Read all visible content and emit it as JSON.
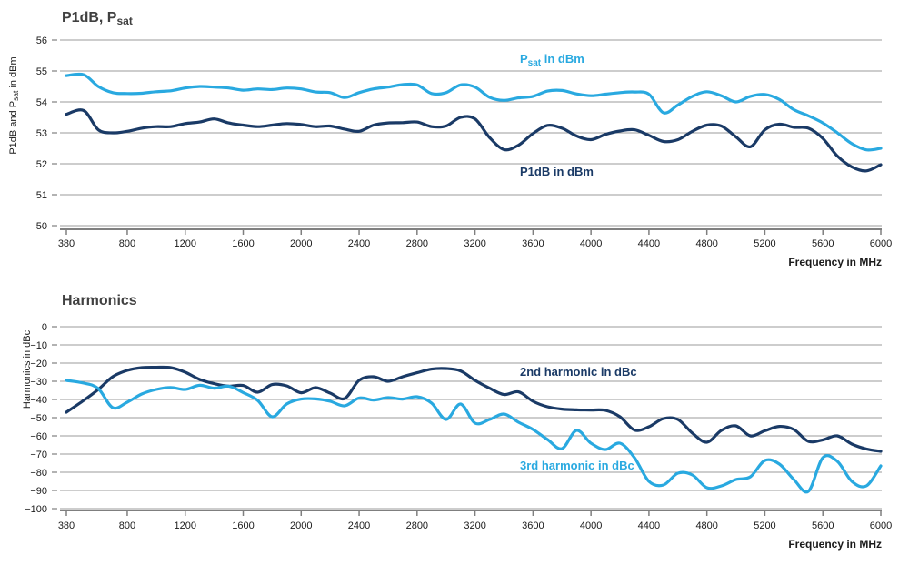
{
  "palette": {
    "light_blue": "#29A9E0",
    "dark_blue": "#1A3A66",
    "grid": "#9B9B9B",
    "axis": "#7F7F7F",
    "title_text": "#404040",
    "tick_text": "#1A1A1A",
    "background": "#FFFFFF"
  },
  "chart_data": [
    {
      "type": "line",
      "title": "P1dB, Psat",
      "title_parts": {
        "pre": "P1dB, P",
        "sub": "sat"
      },
      "ylabel": "P1dB and Psat in dBm",
      "ylabel_parts": {
        "pre": "P1dB and P",
        "sub": "sat",
        "post": " in dBm"
      },
      "xlabel": "Frequency in MHz",
      "ylim": [
        50,
        56
      ],
      "grid": true,
      "legend_position": "inline-labels",
      "y_ticks": [
        56,
        55,
        54,
        53,
        52,
        51,
        50
      ],
      "x_ticks": [
        380,
        800,
        1200,
        1600,
        2000,
        2400,
        2800,
        3200,
        3600,
        4000,
        4400,
        4800,
        5200,
        5600,
        6000
      ],
      "x": [
        380,
        500,
        600,
        700,
        800,
        900,
        1000,
        1100,
        1200,
        1300,
        1400,
        1500,
        1600,
        1700,
        1800,
        1900,
        2000,
        2100,
        2200,
        2300,
        2400,
        2500,
        2600,
        2700,
        2800,
        2900,
        3000,
        3100,
        3200,
        3300,
        3400,
        3500,
        3600,
        3700,
        3800,
        3900,
        4000,
        4100,
        4200,
        4300,
        4400,
        4500,
        4600,
        4700,
        4800,
        4900,
        5000,
        5100,
        5200,
        5300,
        5400,
        5500,
        5600,
        5700,
        5800,
        5900,
        6000
      ],
      "series": [
        {
          "name": "Psat in dBm",
          "legend": {
            "pre": "P",
            "sub": "sat",
            "post": " in dBm"
          },
          "color": "#29A9E0",
          "values": [
            54.85,
            54.88,
            54.5,
            54.3,
            54.27,
            54.28,
            54.33,
            54.36,
            54.45,
            54.5,
            54.48,
            54.45,
            54.38,
            54.42,
            54.4,
            54.45,
            54.42,
            54.32,
            54.3,
            54.14,
            54.3,
            54.42,
            54.48,
            54.56,
            54.55,
            54.27,
            54.3,
            54.55,
            54.48,
            54.15,
            54.05,
            54.13,
            54.18,
            54.35,
            54.37,
            54.26,
            54.2,
            54.25,
            54.3,
            54.32,
            54.25,
            53.65,
            53.9,
            54.18,
            54.33,
            54.2,
            54.0,
            54.18,
            54.24,
            54.08,
            53.75,
            53.55,
            53.32,
            53.0,
            52.65,
            52.45,
            52.5
          ]
        },
        {
          "name": "P1dB in dBm",
          "legend": {
            "pre": "P1dB in dBm",
            "sub": "",
            "post": ""
          },
          "color": "#1A3A66",
          "values": [
            53.6,
            53.72,
            53.1,
            53.0,
            53.05,
            53.15,
            53.2,
            53.2,
            53.3,
            53.35,
            53.45,
            53.32,
            53.25,
            53.2,
            53.25,
            53.3,
            53.27,
            53.2,
            53.22,
            53.12,
            53.05,
            53.25,
            53.32,
            53.33,
            53.35,
            53.2,
            53.22,
            53.5,
            53.45,
            52.85,
            52.46,
            52.6,
            52.98,
            53.24,
            53.15,
            52.9,
            52.78,
            52.95,
            53.06,
            53.1,
            52.92,
            52.72,
            52.78,
            53.05,
            53.25,
            53.22,
            52.87,
            52.55,
            53.1,
            53.28,
            53.18,
            53.15,
            52.82,
            52.25,
            51.9,
            51.77,
            51.97
          ]
        }
      ]
    },
    {
      "type": "line",
      "title": "Harmonics",
      "title_parts": {
        "pre": "Harmonics",
        "sub": ""
      },
      "ylabel": "Harmonics in dBc",
      "ylabel_parts": {
        "pre": "Harmonics in dBc",
        "sub": "",
        "post": ""
      },
      "xlabel": "Frequency in MHz",
      "ylim": [
        -100,
        0
      ],
      "grid": true,
      "legend_position": "inline-labels",
      "y_ticks": [
        0,
        -10,
        -20,
        -30,
        -40,
        -50,
        -60,
        -70,
        -80,
        -90,
        -100
      ],
      "x_ticks": [
        380,
        800,
        1200,
        1600,
        2000,
        2400,
        2800,
        3200,
        3600,
        4000,
        4400,
        4800,
        5200,
        5600,
        6000
      ],
      "x": [
        380,
        500,
        600,
        700,
        800,
        900,
        1000,
        1100,
        1200,
        1300,
        1400,
        1500,
        1600,
        1700,
        1800,
        1900,
        2000,
        2100,
        2200,
        2300,
        2400,
        2500,
        2600,
        2700,
        2800,
        2900,
        3000,
        3100,
        3200,
        3300,
        3400,
        3500,
        3600,
        3700,
        3800,
        3900,
        4000,
        4100,
        4200,
        4300,
        4400,
        4500,
        4600,
        4700,
        4800,
        4900,
        5000,
        5100,
        5200,
        5300,
        5400,
        5500,
        5600,
        5700,
        5800,
        5900,
        6000
      ],
      "series": [
        {
          "name": "2nd harmonic in dBc",
          "legend": {
            "pre": "2nd harmonic in dBc",
            "sub": "",
            "post": ""
          },
          "color": "#1A3A66",
          "values": [
            -47,
            -40.5,
            -34.5,
            -27.5,
            -24,
            -22.5,
            -22.3,
            -22.5,
            -25,
            -29,
            -31.3,
            -32.7,
            -32.3,
            -36,
            -31.8,
            -32.5,
            -36.3,
            -33.5,
            -36.5,
            -39.5,
            -29.5,
            -27.5,
            -30,
            -27.5,
            -25.3,
            -23.3,
            -23,
            -24.3,
            -29.5,
            -33.8,
            -37.3,
            -35.8,
            -41,
            -44,
            -45.3,
            -45.7,
            -45.8,
            -46,
            -49.5,
            -56.8,
            -55,
            -50.5,
            -51,
            -58.5,
            -63.5,
            -57,
            -54.5,
            -60,
            -57.2,
            -54.8,
            -56.5,
            -63,
            -62.2,
            -60,
            -64.5,
            -67.2,
            -68.5
          ]
        },
        {
          "name": "3rd harmonic in dBc",
          "legend": {
            "pre": "3rd harmonic in dBc",
            "sub": "",
            "post": ""
          },
          "color": "#29A9E0",
          "values": [
            -29.5,
            -31,
            -34,
            -44.5,
            -41.5,
            -37,
            -34.5,
            -33.4,
            -34.5,
            -32.2,
            -33.8,
            -32.7,
            -36.2,
            -40.5,
            -49.5,
            -42.5,
            -39.8,
            -39.7,
            -41,
            -43.5,
            -39.2,
            -40.3,
            -39,
            -39.8,
            -38.5,
            -42,
            -51,
            -42.5,
            -53,
            -51,
            -48,
            -52.5,
            -56.5,
            -62,
            -67,
            -57,
            -64,
            -67.5,
            -64,
            -72,
            -85,
            -87,
            -80.5,
            -81.5,
            -88.5,
            -87.5,
            -84,
            -82.5,
            -73.5,
            -75.5,
            -84,
            -90.5,
            -72,
            -74,
            -85,
            -87.5,
            -76.5
          ]
        }
      ]
    }
  ]
}
